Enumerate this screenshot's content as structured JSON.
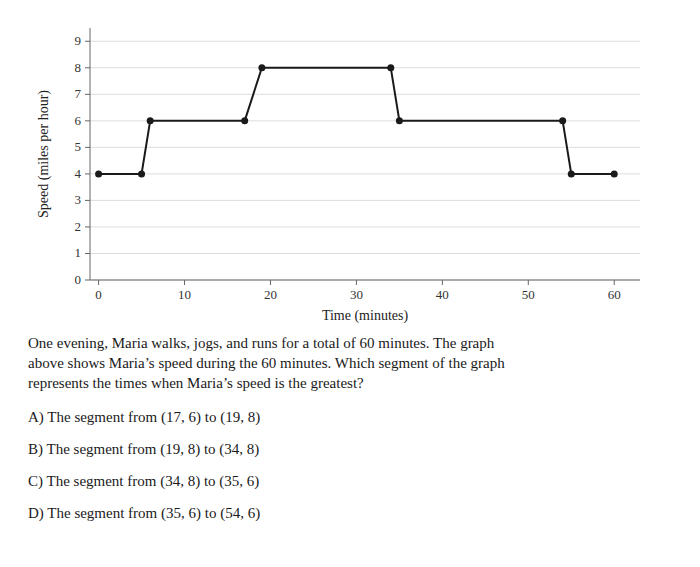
{
  "chart_data": {
    "type": "line",
    "x": [
      0,
      5,
      6,
      17,
      19,
      34,
      35,
      54,
      55,
      60
    ],
    "values": [
      4,
      4,
      6,
      6,
      8,
      8,
      6,
      6,
      4,
      4
    ],
    "color": "#1a1a1a",
    "marker": "circle",
    "xlabel": "Time (minutes)",
    "ylabel": "Speed (miles per hour)",
    "xlim": [
      -1,
      63
    ],
    "ylim": [
      0,
      9.5
    ],
    "xticks": [
      0,
      10,
      20,
      30,
      40,
      50,
      60
    ],
    "yticks": [
      0,
      1,
      2,
      3,
      4,
      5,
      6,
      7,
      8,
      9
    ],
    "grid": true,
    "annotations": [
      "One evening, Maria walks, jogs, and runs for a total of 60 minutes. The graph",
      "above shows Maria’s speed during the 60 minutes. Which segment of the graph",
      "represents the times when Maria’s speed is the greatest?",
      "A)  The segment from (17, 6) to (19, 8)",
      "B)  The segment from (19, 8) to (34, 8)",
      "C)  The segment from (34, 8) to (35, 6)",
      "D)  The segment from (35, 6) to (54, 6)"
    ]
  }
}
